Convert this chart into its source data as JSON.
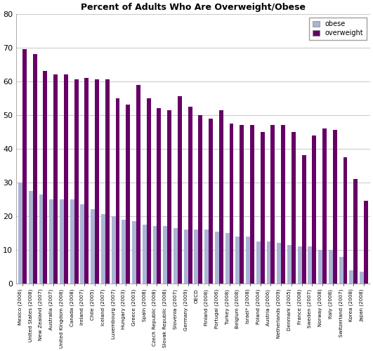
{
  "title": "Percent of Adults Who Are Overweight/Obese",
  "countries": [
    "Mexico (2006)",
    "United States (2008)",
    "New Zealand (2007)",
    "Australia (2007)",
    "United Kingdom (2008)",
    "Canada (2008)",
    "Ireland (2007)",
    "Chile (2005)",
    "Iceland (2007)",
    "Luxembourg (2007)",
    "Hungary (2003)",
    "Greece (2003)",
    "Spain (2008)",
    "Czech Republic (2008)",
    "Slovak Republic (2008)",
    "Slovenia (2007)",
    "Germany (2009)",
    "OECD",
    "Finland (2008)",
    "Portugal (2006)",
    "Turkey (2008)",
    "Belgium (2008)",
    "Israel* (2008)",
    "Poland (2004)",
    "Austria (2006)",
    "Netherlands (2009)",
    "Denmark (2005)",
    "France (2008)",
    "Sweden (2007)",
    "Norway (2008)",
    "Italy (2008)",
    "Switzerland (2007)",
    "Korea (2008)",
    "Japan (2008)"
  ],
  "obese": [
    30,
    27.5,
    26.5,
    25,
    25,
    25,
    23.5,
    22,
    20.5,
    20,
    19,
    18.5,
    17.5,
    17,
    17,
    16.5,
    16,
    16,
    16,
    15.5,
    15,
    14,
    14,
    12.5,
    12.5,
    12,
    11.5,
    11,
    11,
    10,
    10,
    8,
    4,
    3.5
  ],
  "overweight": [
    69.5,
    68,
    63,
    62,
    62,
    60.5,
    61,
    60.5,
    60.5,
    55,
    53,
    59,
    55,
    52,
    51.5,
    55.5,
    52.5,
    50,
    49,
    51.5,
    47.5,
    47,
    47,
    45,
    47,
    47,
    45,
    38,
    44,
    46,
    45.5,
    37.5,
    31,
    24.5
  ],
  "obese_color": "#aab4d4",
  "overweight_color": "#660066",
  "background_color": "#ffffff",
  "ylim": [
    0,
    80
  ],
  "yticks": [
    0,
    10,
    20,
    30,
    40,
    50,
    60,
    70,
    80
  ],
  "legend_obese": "obese",
  "legend_overweight": "overweight",
  "figwidth": 5.31,
  "figheight": 5.0,
  "dpi": 100
}
